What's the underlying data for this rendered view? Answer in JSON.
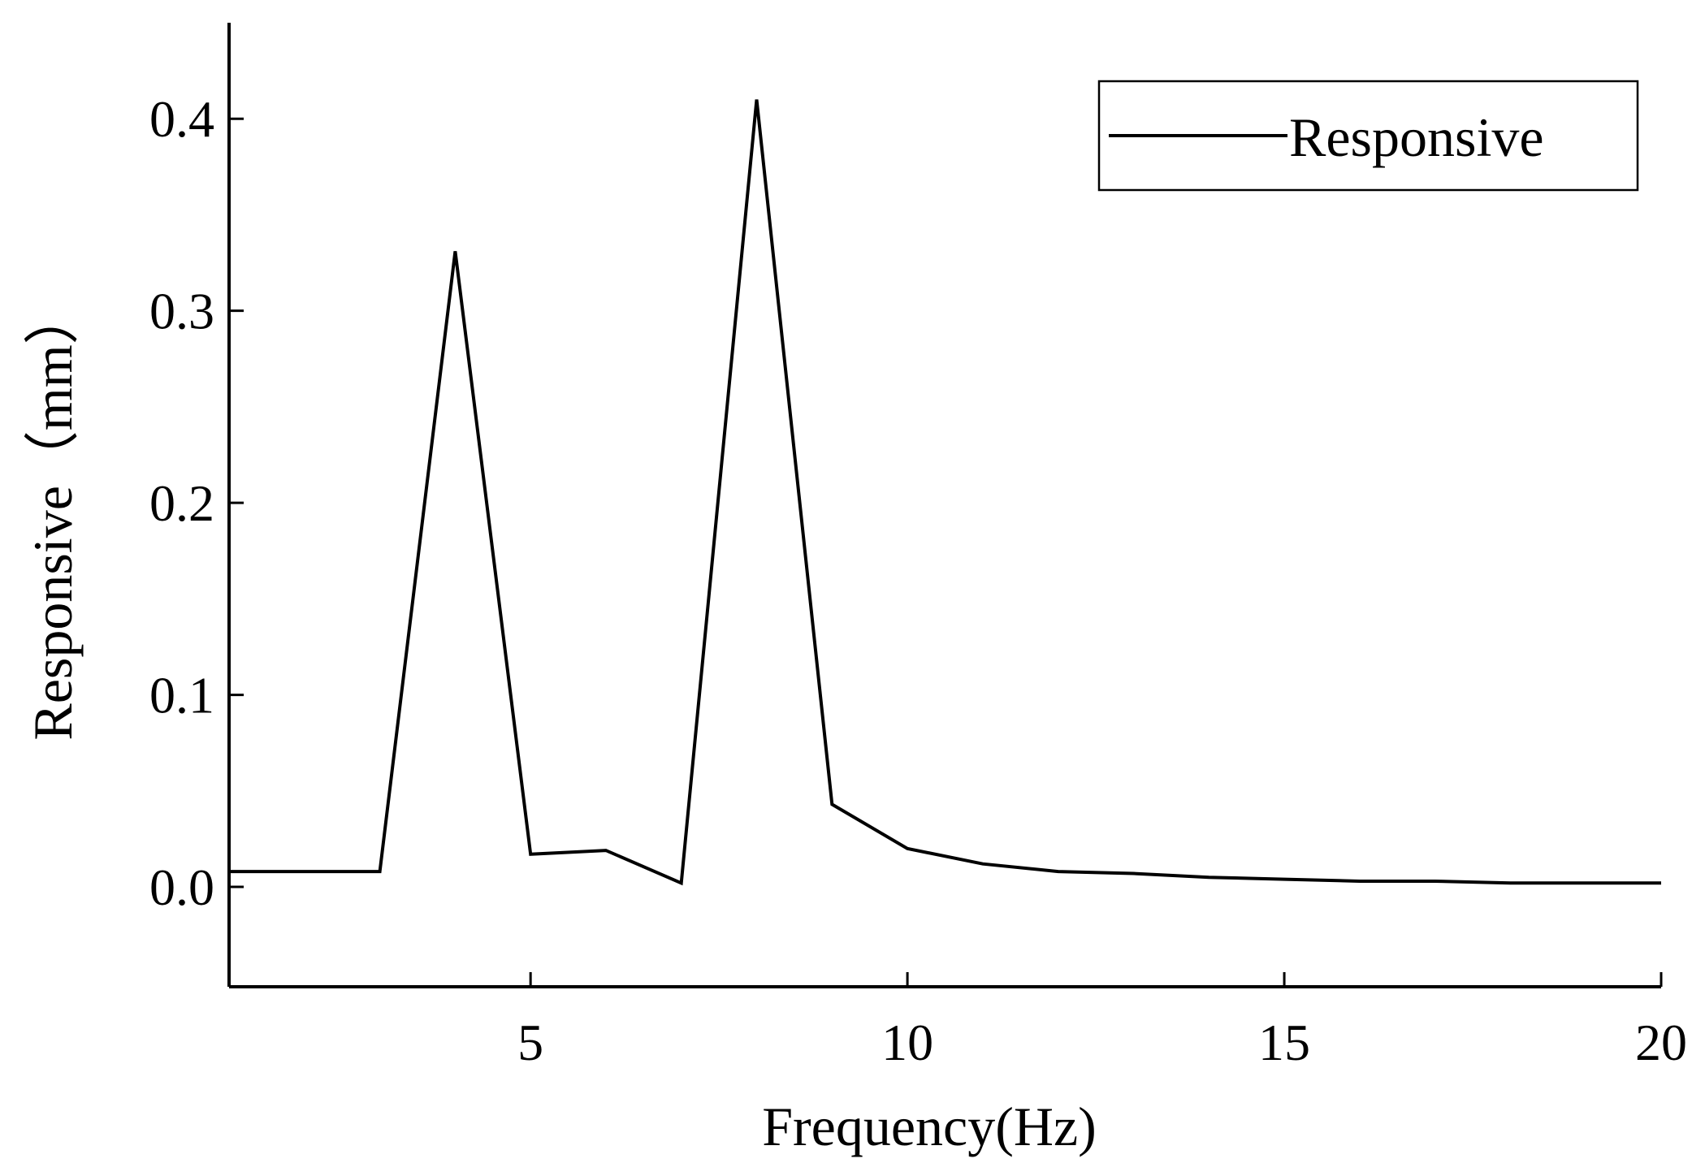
{
  "chart_data": {
    "type": "line",
    "title": "",
    "xlabel": "Frequency(Hz)",
    "ylabel": "Responsive（mm）",
    "xlim": [
      1,
      20
    ],
    "ylim": [
      -0.052,
      0.45
    ],
    "x_ticks": [
      5,
      10,
      15,
      20
    ],
    "x_tick_labels": [
      "5",
      "10",
      "15",
      "20"
    ],
    "y_ticks": [
      0.0,
      0.1,
      0.2,
      0.3,
      0.4
    ],
    "y_tick_labels": [
      "0.0",
      "0.1",
      "0.2",
      "0.3",
      "0.4"
    ],
    "grid": false,
    "legend": {
      "position": "top-right",
      "entries": [
        "Responsive"
      ]
    },
    "series": [
      {
        "name": "Responsive",
        "color": "#000000",
        "x": [
          1,
          2,
          3,
          4,
          5,
          6,
          7,
          8,
          9,
          10,
          11,
          12,
          13,
          14,
          15,
          16,
          17,
          18,
          19,
          20
        ],
        "y": [
          0.008,
          0.008,
          0.008,
          0.331,
          0.017,
          0.019,
          0.002,
          0.41,
          0.043,
          0.02,
          0.012,
          0.008,
          0.007,
          0.005,
          0.004,
          0.003,
          0.003,
          0.002,
          0.002,
          0.002
        ]
      }
    ]
  }
}
